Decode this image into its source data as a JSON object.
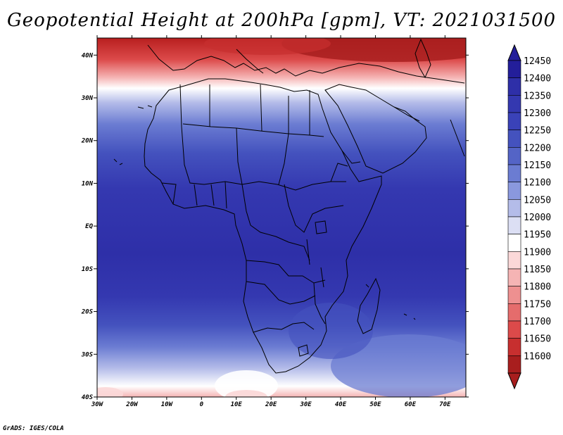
{
  "title": "Geopotential Height at 200hPa [gpm], VT: 2021031500",
  "footer": "GrADS: IGES/COLA",
  "map": {
    "lat_labels": [
      "40N",
      "30N",
      "20N",
      "10N",
      "EQ",
      "10S",
      "20S",
      "30S",
      "40S"
    ],
    "lat_values": [
      40,
      30,
      20,
      10,
      0,
      -10,
      -20,
      -30,
      -40
    ],
    "lon_labels": [
      "30W",
      "20W",
      "10W",
      "0",
      "10E",
      "20E",
      "30E",
      "40E",
      "50E",
      "60E",
      "70E"
    ],
    "lon_values": [
      -30,
      -20,
      -10,
      0,
      10,
      20,
      30,
      40,
      50,
      60,
      70
    ],
    "lon_range": [
      -30,
      76
    ],
    "lat_range": [
      -40,
      44
    ]
  },
  "colorbar": {
    "levels": [
      "12450",
      "12400",
      "12350",
      "12300",
      "12250",
      "12200",
      "12150",
      "12100",
      "12050",
      "12000",
      "11950",
      "11900",
      "11850",
      "11800",
      "11750",
      "11700",
      "11650",
      "11600"
    ],
    "colors": [
      "#231e9a",
      "#2e2fa8",
      "#3438b0",
      "#3a42b8",
      "#4452be",
      "#5464c6",
      "#6b7cd2",
      "#8a98de",
      "#b4bce9",
      "#dcdff4",
      "#ffffff",
      "#fbd8d8",
      "#f5b4b4",
      "#ee9090",
      "#e56c6c",
      "#dc4a4a",
      "#c72f2f",
      "#a81e1e"
    ]
  }
}
